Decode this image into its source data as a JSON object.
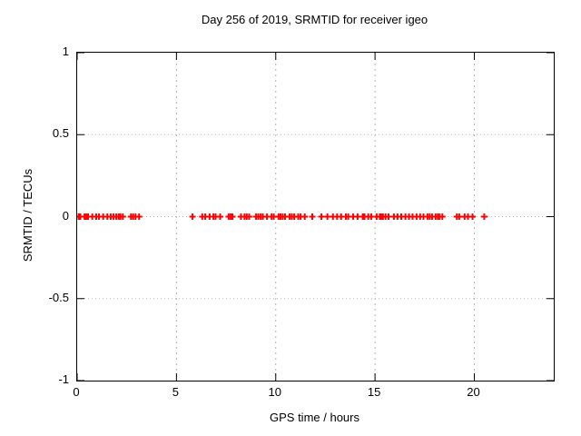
{
  "chart": {
    "background": "#ffffff",
    "frame_color": "#000000",
    "grid_color": "#b4b4b4",
    "text_color": "#000000"
  },
  "chart_data": {
    "type": "scatter",
    "title": "Day 256 of 2019, SRMTID for receiver igeo",
    "xlabel": "GPS time / hours",
    "ylabel": "SRMTID / TECUs",
    "xlim": [
      0,
      24
    ],
    "ylim": [
      -1,
      1
    ],
    "xticks": [
      0,
      5,
      10,
      15,
      20
    ],
    "yticks": [
      1,
      0.5,
      0,
      -0.5,
      -1
    ],
    "grid": true,
    "legend": false,
    "marker": "plus",
    "marker_color": "#ff0000",
    "series": [
      {
        "name": "SRMTID",
        "y_constant": 0,
        "x": [
          0.07,
          0.16,
          0.37,
          0.46,
          0.55,
          0.76,
          0.96,
          1.1,
          1.31,
          1.52,
          1.69,
          1.83,
          1.97,
          2.09,
          2.18,
          2.3,
          2.71,
          2.82,
          2.94,
          3.12,
          5.81,
          6.3,
          6.45,
          6.67,
          6.86,
          6.97,
          7.2,
          7.63,
          7.73,
          7.82,
          8.25,
          8.43,
          8.54,
          8.66,
          9.01,
          9.12,
          9.24,
          9.35,
          9.56,
          9.79,
          9.9,
          10.14,
          10.24,
          10.35,
          10.47,
          10.7,
          10.81,
          10.93,
          11.13,
          11.25,
          11.46,
          11.84,
          12.3,
          12.6,
          12.88,
          13.09,
          13.29,
          13.53,
          13.65,
          13.9,
          14.12,
          14.38,
          14.47,
          14.66,
          14.81,
          15.08,
          15.24,
          15.31,
          15.4,
          15.53,
          15.68,
          15.95,
          16.13,
          16.32,
          16.53,
          16.71,
          16.89,
          17.09,
          17.27,
          17.44,
          17.64,
          17.75,
          17.87,
          18.05,
          18.16,
          18.25,
          18.39,
          19.12,
          19.24,
          19.51,
          19.68,
          19.91,
          20.5
        ]
      }
    ]
  }
}
